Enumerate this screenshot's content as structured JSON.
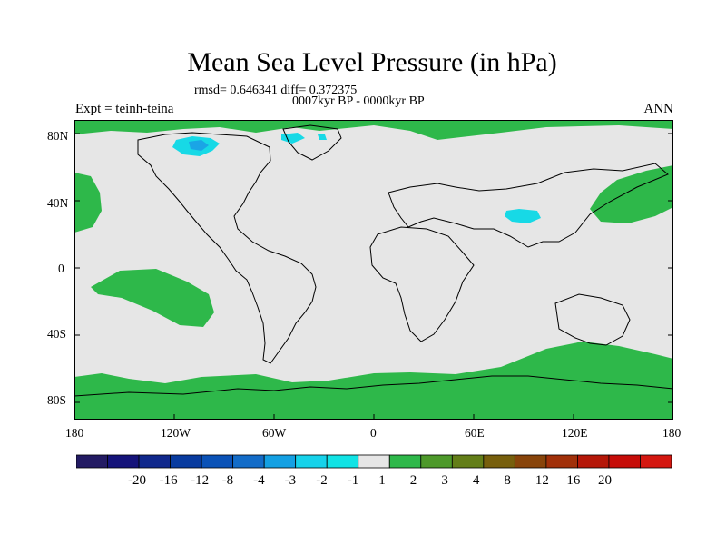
{
  "title": "Mean Sea Level Pressure (in hPa)",
  "stats": "rmsd= 0.646341 diff= 0.372375",
  "period": "0007kyr BP - 0000kyr BP",
  "experiment": "Expt = teinh-teina",
  "season": "ANN",
  "colors": {
    "background_field": "#e6e6e6",
    "positive_1_2": "#2eb84a",
    "negative_minus2_minus1": "#17d9e6",
    "negative_minus3_minus2": "#14c6ea",
    "negative_minus4_minus3": "#1aa5e6"
  },
  "axes": {
    "lat_labels": [
      "80N",
      "40N",
      "0",
      "40S",
      "80S"
    ],
    "lon_labels": [
      "180",
      "120W",
      "60W",
      "0",
      "60E",
      "120E",
      "180"
    ]
  },
  "colorbar": {
    "boundaries": [
      "-20",
      "-16",
      "-12",
      "-8",
      "-4",
      "-3",
      "-2",
      "-1",
      "1",
      "2",
      "3",
      "4",
      "8",
      "12",
      "16",
      "20"
    ],
    "colors": [
      "#231b63",
      "#15137a",
      "#10288c",
      "#083b9f",
      "#0a52b7",
      "#136cc8",
      "#14a0e3",
      "#16d2ea",
      "#11e3e5",
      "#e6e6e6",
      "#2eb84a",
      "#4d992a",
      "#637e18",
      "#775f0c",
      "#88440a",
      "#a13009",
      "#b51708",
      "#c60c08",
      "#d41710"
    ]
  }
}
